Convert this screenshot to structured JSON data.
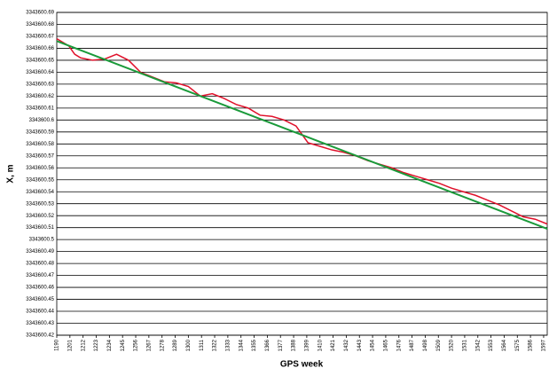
{
  "chart_data": {
    "type": "line",
    "xlabel": "GPS week",
    "ylabel": "X, m",
    "xlim": [
      1190,
      1600
    ],
    "xticks": [
      1190,
      1201,
      1212,
      1223,
      1234,
      1245,
      1256,
      1267,
      1278,
      1289,
      1300,
      1311,
      1322,
      1333,
      1344,
      1355,
      1366,
      1377,
      1388,
      1399,
      1410,
      1421,
      1432,
      1443,
      1454,
      1465,
      1476,
      1487,
      1498,
      1509,
      1520,
      1531,
      1542,
      1553,
      1564,
      1575,
      1586,
      1597
    ],
    "ylim": [
      3343600.42,
      3343600.69
    ],
    "yticks": [
      3343600.42,
      3343600.43,
      3343600.44,
      3343600.45,
      3343600.46,
      3343600.47,
      3343600.48,
      3343600.49,
      3343600.5,
      3343600.51,
      3343600.52,
      3343600.53,
      3343600.54,
      3343600.55,
      3343600.56,
      3343600.57,
      3343600.58,
      3343600.59,
      3343600.6,
      3343600.61,
      3343600.62,
      3343600.63,
      3343600.64,
      3343600.65,
      3343600.66,
      3343600.67,
      3343600.68,
      3343600.69
    ],
    "grid": true,
    "series": [
      {
        "color": "#e0102a",
        "x": [
          1190,
          1200,
          1205,
          1210,
          1220,
          1230,
          1240,
          1250,
          1260,
          1270,
          1280,
          1290,
          1300,
          1310,
          1320,
          1330,
          1340,
          1350,
          1360,
          1370,
          1380,
          1390,
          1400,
          1410,
          1420,
          1430,
          1440,
          1450,
          1460,
          1470,
          1480,
          1490,
          1500,
          1510,
          1520,
          1530,
          1540,
          1550,
          1560,
          1570,
          1580,
          1590,
          1600
        ],
        "values": [
          3343600.668,
          3343600.662,
          3343600.655,
          3343600.652,
          3343600.65,
          3343600.651,
          3343600.655,
          3343600.65,
          3343600.64,
          3343600.636,
          3343600.632,
          3343600.631,
          3343600.628,
          3343600.62,
          3343600.622,
          3343600.618,
          3343600.613,
          3343600.61,
          3343600.604,
          3343600.603,
          3343600.6,
          3343600.595,
          3343600.581,
          3343600.578,
          3343600.575,
          3343600.573,
          3343600.57,
          3343600.566,
          3343600.563,
          3343600.56,
          3343600.556,
          3343600.553,
          3343600.55,
          3343600.547,
          3343600.543,
          3343600.54,
          3343600.537,
          3343600.533,
          3343600.529,
          3343600.524,
          3343600.519,
          3343600.517,
          3343600.513
        ]
      },
      {
        "color": "#1a9a3a",
        "x": [
          1190,
          1600
        ],
        "values": [
          3343600.666,
          3343600.509
        ]
      }
    ]
  }
}
